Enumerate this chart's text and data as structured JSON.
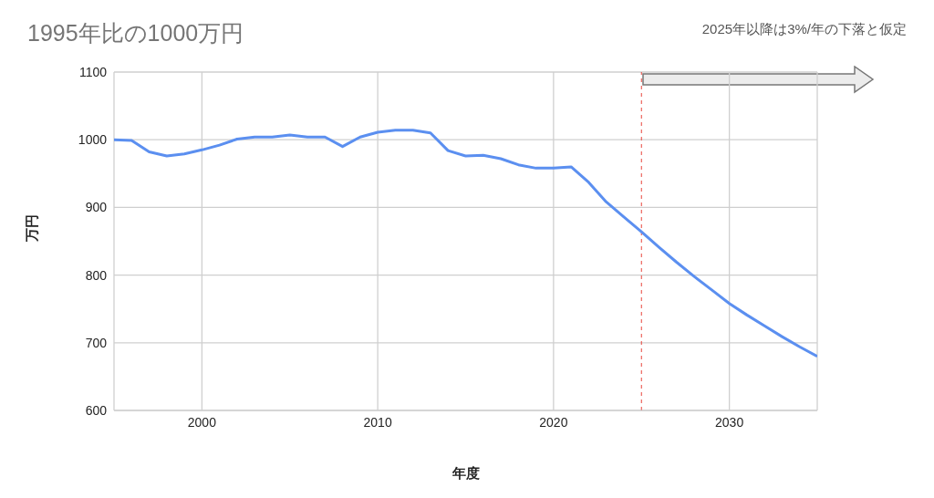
{
  "chart_data": {
    "type": "line",
    "title": "1995年比の1000万円",
    "xlabel": "年度",
    "ylabel": "万円",
    "annotations": [
      "2025年以降は3%/年の下落と仮定"
    ],
    "x": [
      1995,
      1996,
      1997,
      1998,
      1999,
      2000,
      2001,
      2002,
      2003,
      2004,
      2005,
      2006,
      2007,
      2008,
      2009,
      2010,
      2011,
      2012,
      2013,
      2014,
      2015,
      2016,
      2017,
      2018,
      2019,
      2020,
      2021,
      2022,
      2023,
      2024,
      2025,
      2026,
      2027,
      2028,
      2029,
      2030,
      2031,
      2032,
      2033,
      2034,
      2035
    ],
    "series": [
      {
        "color": "#5b8ff0",
        "values": [
          1000,
          999,
          982,
          976,
          979,
          985,
          992,
          1001,
          1004,
          1004,
          1007,
          1004,
          1004,
          990,
          1004,
          1011,
          1014,
          1014,
          1010,
          984,
          976,
          977,
          972,
          963,
          958,
          958,
          960,
          937,
          908,
          886,
          864,
          841,
          819,
          798,
          778,
          758,
          741,
          725,
          709,
          694,
          680
        ]
      }
    ],
    "xlim": [
      1995,
      2035
    ],
    "xticks": [
      2000,
      2010,
      2020,
      2030
    ],
    "ylim": [
      600,
      1100
    ],
    "yticks": [
      600,
      700,
      800,
      900,
      1000,
      1100
    ],
    "grid": true,
    "legend": false,
    "marker": "none",
    "line_style": "solid",
    "ref_lines": [
      {
        "axis": "x",
        "value": 2025,
        "color": "#e8453c",
        "line_style": "dashed"
      }
    ]
  }
}
